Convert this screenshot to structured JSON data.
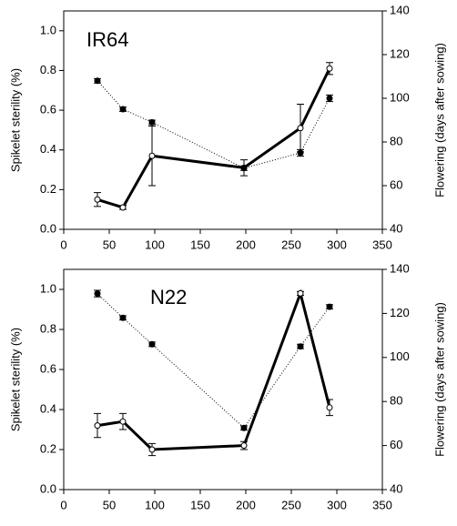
{
  "chart_data": [
    {
      "type": "line",
      "annotation": "IR64",
      "ylabel": "Spikelet sterility (%)",
      "y2label": "Flowering (days after sowing)",
      "x": [
        37,
        65,
        97,
        198,
        260,
        292
      ],
      "xlim": [
        0,
        350
      ],
      "xticks": [
        0,
        50,
        100,
        150,
        200,
        250,
        300,
        350
      ],
      "ylim": [
        0,
        1.1
      ],
      "yticks": [
        {
          "value": 0,
          "label": "0.0"
        },
        0.2,
        0.4,
        0.6,
        0.8,
        {
          "value": 1,
          "label": "1.0"
        }
      ],
      "y2lim": [
        40,
        140
      ],
      "y2ticks": [
        40,
        60,
        80,
        100,
        120,
        140
      ],
      "series": [
        {
          "color": "#000000",
          "style": "solid",
          "marker": "open",
          "axis": "y",
          "values": [
            0.15,
            0.11,
            0.37,
            0.31,
            0.51,
            0.81
          ],
          "errors": [
            0.035,
            0.01,
            0.15,
            0.04,
            0.12,
            0.03
          ]
        },
        {
          "color": "#000000",
          "style": "dotted",
          "marker": "filled",
          "axis": "y2",
          "values": [
            108,
            95,
            89,
            68,
            75,
            100
          ],
          "errors": [
            1,
            1,
            1,
            1,
            1.5,
            1.5
          ]
        }
      ]
    },
    {
      "type": "line",
      "annotation": "N22",
      "ylabel": "Spikelet sterility (%)",
      "y2label": "Flowering (days after sowing)",
      "x": [
        37,
        65,
        97,
        198,
        260,
        292
      ],
      "xlim": [
        0,
        350
      ],
      "xticks": [
        0,
        50,
        100,
        150,
        200,
        250,
        300,
        350
      ],
      "ylim": [
        0,
        1.1
      ],
      "yticks": [
        {
          "value": 0,
          "label": "0.0"
        },
        0.2,
        0.4,
        0.6,
        0.8,
        {
          "value": 1,
          "label": "1.0"
        }
      ],
      "y2lim": [
        40,
        140
      ],
      "y2ticks": [
        40,
        60,
        80,
        100,
        120,
        140
      ],
      "series": [
        {
          "color": "#000000",
          "style": "solid",
          "marker": "open",
          "axis": "y",
          "values": [
            0.32,
            0.34,
            0.2,
            0.22,
            0.98,
            0.41
          ],
          "errors": [
            0.06,
            0.04,
            0.03,
            0.02,
            0.01,
            0.04
          ]
        },
        {
          "color": "#000000",
          "style": "dotted",
          "marker": "filled",
          "axis": "y2",
          "values": [
            129,
            118,
            106,
            68,
            105,
            123
          ],
          "errors": [
            1.5,
            1,
            1,
            1,
            1,
            1
          ]
        }
      ]
    }
  ]
}
